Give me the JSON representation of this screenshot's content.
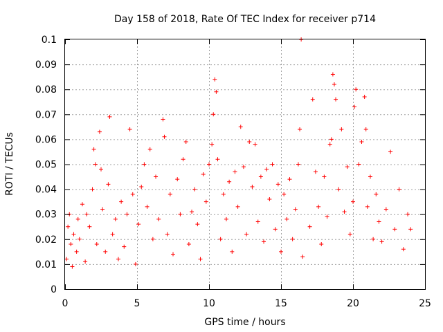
{
  "chart_data": {
    "type": "scatter",
    "title": "Day 158 of 2018, Rate Of TEC Index for receiver p714",
    "xlabel": "GPS time / hours",
    "ylabel": "ROTI / TECUs",
    "xlim": [
      0,
      25
    ],
    "ylim": [
      0,
      0.1
    ],
    "xticks": [
      0,
      5,
      10,
      15,
      20,
      25
    ],
    "yticks": [
      0,
      0.01,
      0.02,
      0.03,
      0.04,
      0.05,
      0.06,
      0.07,
      0.08,
      0.09,
      0.1
    ],
    "xtick_labels": [
      "0",
      "5",
      "10",
      "15",
      "20",
      "25"
    ],
    "ytick_labels": [
      "0",
      "0.01",
      "0.02",
      "0.03",
      "0.04",
      "0.05",
      "0.06",
      "0.07",
      "0.08",
      "0.09",
      "0.1"
    ],
    "grid": true,
    "marker": "+",
    "color": "#ff0000",
    "series": [
      {
        "name": "ROTI",
        "points": [
          [
            0.1,
            0.012
          ],
          [
            0.2,
            0.025
          ],
          [
            0.3,
            0.03
          ],
          [
            0.4,
            0.018
          ],
          [
            0.5,
            0.009
          ],
          [
            0.6,
            0.022
          ],
          [
            0.8,
            0.015
          ],
          [
            0.9,
            0.028
          ],
          [
            1.0,
            0.02
          ],
          [
            1.2,
            0.034
          ],
          [
            1.4,
            0.011
          ],
          [
            1.5,
            0.03
          ],
          [
            1.7,
            0.025
          ],
          [
            1.9,
            0.04
          ],
          [
            2.0,
            0.056
          ],
          [
            2.1,
            0.05
          ],
          [
            2.2,
            0.018
          ],
          [
            2.4,
            0.063
          ],
          [
            2.5,
            0.048
          ],
          [
            2.6,
            0.032
          ],
          [
            2.8,
            0.015
          ],
          [
            3.0,
            0.042
          ],
          [
            3.1,
            0.069
          ],
          [
            3.3,
            0.022
          ],
          [
            3.5,
            0.028
          ],
          [
            3.7,
            0.012
          ],
          [
            3.9,
            0.035
          ],
          [
            4.1,
            0.017
          ],
          [
            4.3,
            0.03
          ],
          [
            4.5,
            0.064
          ],
          [
            4.7,
            0.038
          ],
          [
            4.9,
            0.01
          ],
          [
            5.1,
            0.026
          ],
          [
            5.3,
            0.041
          ],
          [
            5.5,
            0.05
          ],
          [
            5.7,
            0.033
          ],
          [
            5.9,
            0.056
          ],
          [
            6.1,
            0.02
          ],
          [
            6.3,
            0.045
          ],
          [
            6.5,
            0.028
          ],
          [
            6.8,
            0.068
          ],
          [
            6.9,
            0.061
          ],
          [
            7.1,
            0.022
          ],
          [
            7.3,
            0.038
          ],
          [
            7.5,
            0.014
          ],
          [
            7.8,
            0.044
          ],
          [
            8.0,
            0.03
          ],
          [
            8.2,
            0.052
          ],
          [
            8.4,
            0.059
          ],
          [
            8.6,
            0.018
          ],
          [
            8.8,
            0.031
          ],
          [
            9.0,
            0.04
          ],
          [
            9.2,
            0.026
          ],
          [
            9.4,
            0.012
          ],
          [
            9.6,
            0.046
          ],
          [
            9.8,
            0.035
          ],
          [
            10.0,
            0.05
          ],
          [
            10.2,
            0.058
          ],
          [
            10.3,
            0.07
          ],
          [
            10.4,
            0.084
          ],
          [
            10.5,
            0.079
          ],
          [
            10.6,
            0.052
          ],
          [
            10.8,
            0.02
          ],
          [
            11.0,
            0.038
          ],
          [
            11.2,
            0.028
          ],
          [
            11.4,
            0.043
          ],
          [
            11.6,
            0.015
          ],
          [
            11.8,
            0.047
          ],
          [
            12.0,
            0.033
          ],
          [
            12.2,
            0.065
          ],
          [
            12.4,
            0.049
          ],
          [
            12.6,
            0.022
          ],
          [
            12.8,
            0.059
          ],
          [
            13.0,
            0.041
          ],
          [
            13.2,
            0.058
          ],
          [
            13.4,
            0.027
          ],
          [
            13.6,
            0.045
          ],
          [
            13.8,
            0.019
          ],
          [
            14.0,
            0.048
          ],
          [
            14.2,
            0.036
          ],
          [
            14.4,
            0.05
          ],
          [
            14.6,
            0.024
          ],
          [
            14.8,
            0.042
          ],
          [
            15.0,
            0.015
          ],
          [
            15.2,
            0.038
          ],
          [
            15.4,
            0.028
          ],
          [
            15.6,
            0.044
          ],
          [
            15.8,
            0.02
          ],
          [
            16.0,
            0.032
          ],
          [
            16.2,
            0.05
          ],
          [
            16.3,
            0.064
          ],
          [
            16.4,
            0.1
          ],
          [
            16.5,
            0.013
          ],
          [
            17.0,
            0.025
          ],
          [
            17.2,
            0.076
          ],
          [
            17.4,
            0.047
          ],
          [
            17.6,
            0.033
          ],
          [
            17.8,
            0.018
          ],
          [
            18.0,
            0.045
          ],
          [
            18.2,
            0.029
          ],
          [
            18.4,
            0.058
          ],
          [
            18.5,
            0.06
          ],
          [
            18.6,
            0.086
          ],
          [
            18.7,
            0.082
          ],
          [
            18.8,
            0.076
          ],
          [
            19.0,
            0.04
          ],
          [
            19.2,
            0.064
          ],
          [
            19.4,
            0.031
          ],
          [
            19.6,
            0.049
          ],
          [
            19.8,
            0.022
          ],
          [
            20.0,
            0.035
          ],
          [
            20.1,
            0.073
          ],
          [
            20.2,
            0.08
          ],
          [
            20.4,
            0.05
          ],
          [
            20.6,
            0.059
          ],
          [
            20.8,
            0.077
          ],
          [
            20.9,
            0.064
          ],
          [
            21.0,
            0.033
          ],
          [
            21.2,
            0.045
          ],
          [
            21.4,
            0.02
          ],
          [
            21.6,
            0.038
          ],
          [
            21.8,
            0.027
          ],
          [
            22.0,
            0.019
          ],
          [
            22.3,
            0.032
          ],
          [
            22.6,
            0.055
          ],
          [
            22.9,
            0.024
          ],
          [
            23.2,
            0.04
          ],
          [
            23.5,
            0.016
          ],
          [
            23.8,
            0.03
          ],
          [
            24.0,
            0.024
          ]
        ]
      }
    ]
  }
}
